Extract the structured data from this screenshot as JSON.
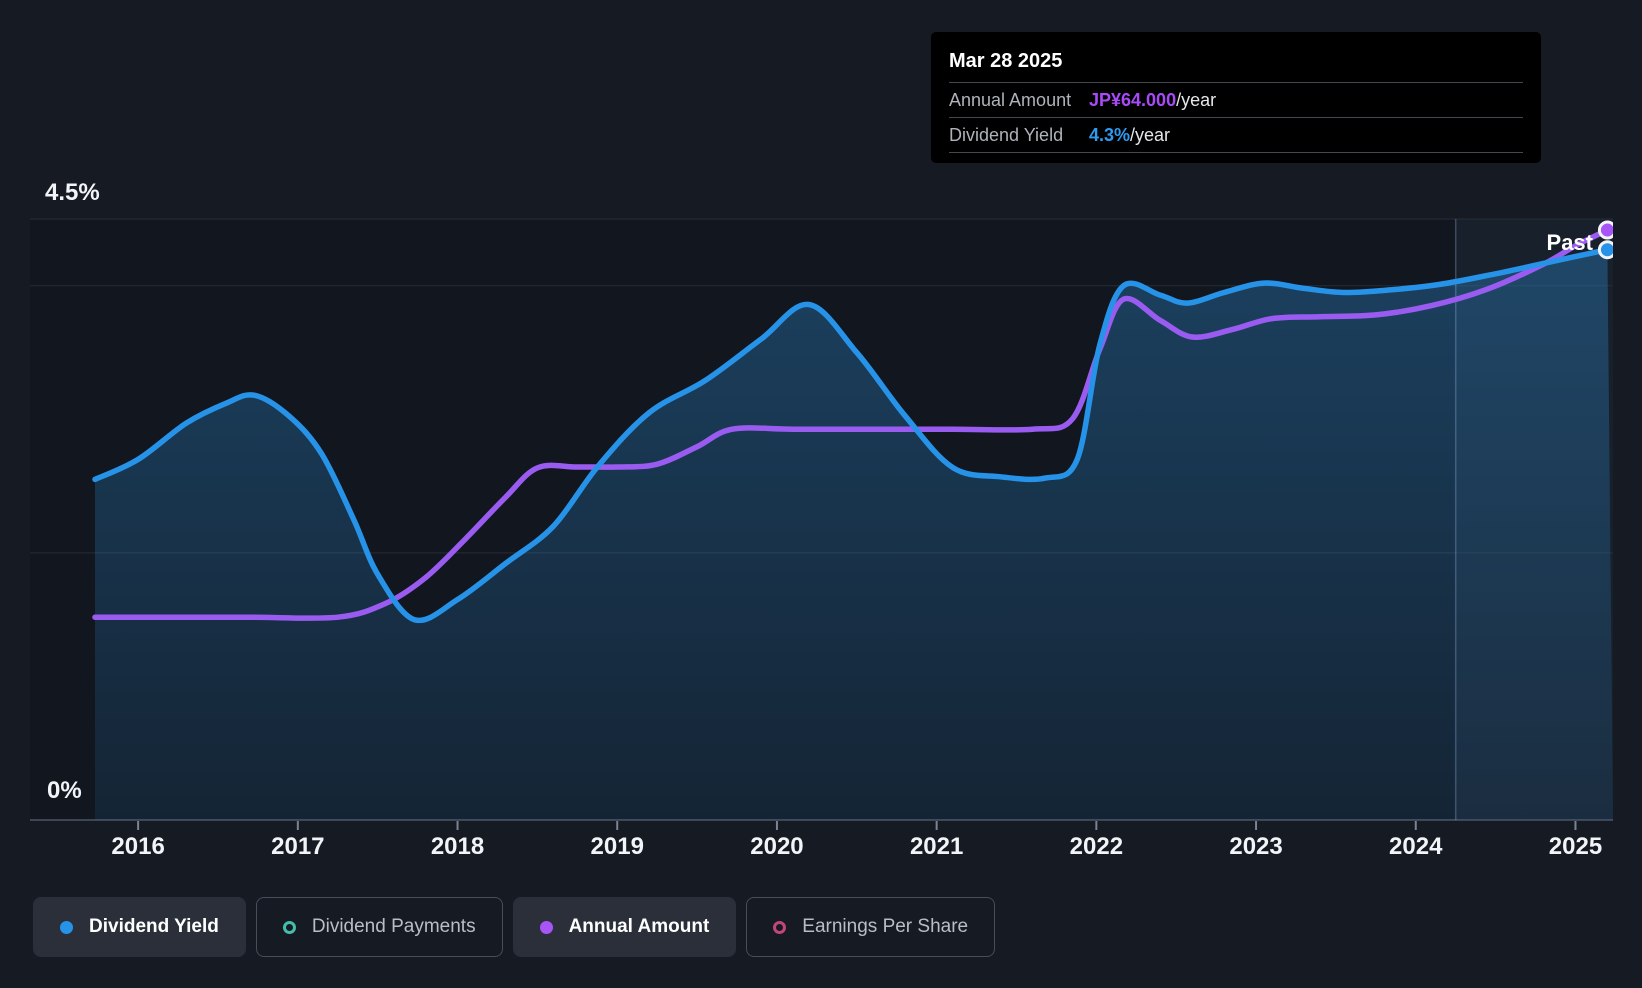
{
  "page": {
    "background": "#151a23"
  },
  "header_tooltip": {
    "date": "Mar 28 2025",
    "rows": [
      {
        "label": "Annual Amount",
        "value": "JP¥64.000",
        "suffix": "/year",
        "color": "#a84af7"
      },
      {
        "label": "Dividend Yield",
        "value": "4.3%",
        "suffix": "/year",
        "color": "#2e9bf0"
      }
    ]
  },
  "y_axis": {
    "top": "4.5%",
    "bottom": "0%"
  },
  "x_axis": {
    "years": [
      "2016",
      "2017",
      "2018",
      "2019",
      "2020",
      "2021",
      "2022",
      "2023",
      "2024",
      "2025"
    ]
  },
  "annotations": {
    "past": "Past"
  },
  "legend": [
    {
      "label": "Dividend Yield",
      "color": "#2793e8",
      "marker": "filled",
      "active": true
    },
    {
      "label": "Dividend Payments",
      "color": "#45bcad",
      "marker": "outline",
      "active": false
    },
    {
      "label": "Annual Amount",
      "color": "#a855f7",
      "marker": "filled",
      "active": true
    },
    {
      "label": "Earnings Per Share",
      "color": "#c2457b",
      "marker": "outline",
      "active": false
    }
  ],
  "chart_data": {
    "type": "line",
    "x_unit": "decimal_year",
    "xlim": [
      2015.73,
      2025.235
    ],
    "grid": true,
    "legend_position": "bottom",
    "gridlines_percent": [
      4.5,
      4.0,
      2.0
    ],
    "baseline_percent": 0,
    "past_band_start_x": 2024.25,
    "colors": {
      "yield_line": "#2793e8",
      "amount_line": "#9a5cf0",
      "fill_top": "rgba(45,140,210,0.36)",
      "fill_bottom": "rgba(45,140,210,0.12)",
      "band": "rgba(125,175,230,0.07)",
      "band_line": "rgba(160,200,250,0.28)"
    },
    "series": [
      {
        "name": "Dividend Yield",
        "axis": "percent",
        "ylim": [
          0,
          4.5
        ],
        "fill": true,
        "end_marker": true,
        "points": [
          [
            2015.73,
            2.55
          ],
          [
            2016.0,
            2.7
          ],
          [
            2016.3,
            2.97
          ],
          [
            2016.55,
            3.12
          ],
          [
            2016.73,
            3.18
          ],
          [
            2016.95,
            3.02
          ],
          [
            2017.15,
            2.74
          ],
          [
            2017.35,
            2.25
          ],
          [
            2017.5,
            1.84
          ],
          [
            2017.73,
            1.5
          ],
          [
            2018.0,
            1.65
          ],
          [
            2018.3,
            1.92
          ],
          [
            2018.6,
            2.2
          ],
          [
            2018.88,
            2.65
          ],
          [
            2019.2,
            3.05
          ],
          [
            2019.55,
            3.29
          ],
          [
            2019.9,
            3.6
          ],
          [
            2020.2,
            3.86
          ],
          [
            2020.5,
            3.5
          ],
          [
            2020.8,
            3.03
          ],
          [
            2021.1,
            2.64
          ],
          [
            2021.4,
            2.57
          ],
          [
            2021.68,
            2.56
          ],
          [
            2021.88,
            2.7
          ],
          [
            2022.02,
            3.55
          ],
          [
            2022.17,
            4.0
          ],
          [
            2022.4,
            3.93
          ],
          [
            2022.57,
            3.87
          ],
          [
            2022.8,
            3.95
          ],
          [
            2023.05,
            4.02
          ],
          [
            2023.3,
            3.98
          ],
          [
            2023.55,
            3.95
          ],
          [
            2023.85,
            3.97
          ],
          [
            2024.15,
            4.01
          ],
          [
            2024.5,
            4.09
          ],
          [
            2024.85,
            4.18
          ],
          [
            2025.2,
            4.27
          ]
        ]
      },
      {
        "name": "Annual Amount",
        "axis": "jpy_per_year",
        "ylim": [
          0,
          65.2
        ],
        "fill": false,
        "end_marker": true,
        "points": [
          [
            2015.73,
            22
          ],
          [
            2016.2,
            22
          ],
          [
            2016.7,
            22
          ],
          [
            2017.25,
            22
          ],
          [
            2017.55,
            23.5
          ],
          [
            2017.8,
            26.3
          ],
          [
            2018.05,
            30.5
          ],
          [
            2018.3,
            35
          ],
          [
            2018.5,
            38.2
          ],
          [
            2018.75,
            38.3
          ],
          [
            2019.0,
            38.3
          ],
          [
            2019.25,
            38.6
          ],
          [
            2019.5,
            40.5
          ],
          [
            2019.72,
            42.4
          ],
          [
            2020.1,
            42.4
          ],
          [
            2020.6,
            42.4
          ],
          [
            2021.1,
            42.4
          ],
          [
            2021.6,
            42.4
          ],
          [
            2021.85,
            43.5
          ],
          [
            2022.02,
            51
          ],
          [
            2022.17,
            56.5
          ],
          [
            2022.4,
            54.2
          ],
          [
            2022.6,
            52.4
          ],
          [
            2022.85,
            53.2
          ],
          [
            2023.1,
            54.4
          ],
          [
            2023.4,
            54.6
          ],
          [
            2023.75,
            54.8
          ],
          [
            2024.1,
            55.8
          ],
          [
            2024.45,
            57.6
          ],
          [
            2024.8,
            60.3
          ],
          [
            2025.0,
            62.3
          ],
          [
            2025.2,
            64
          ]
        ]
      }
    ]
  }
}
